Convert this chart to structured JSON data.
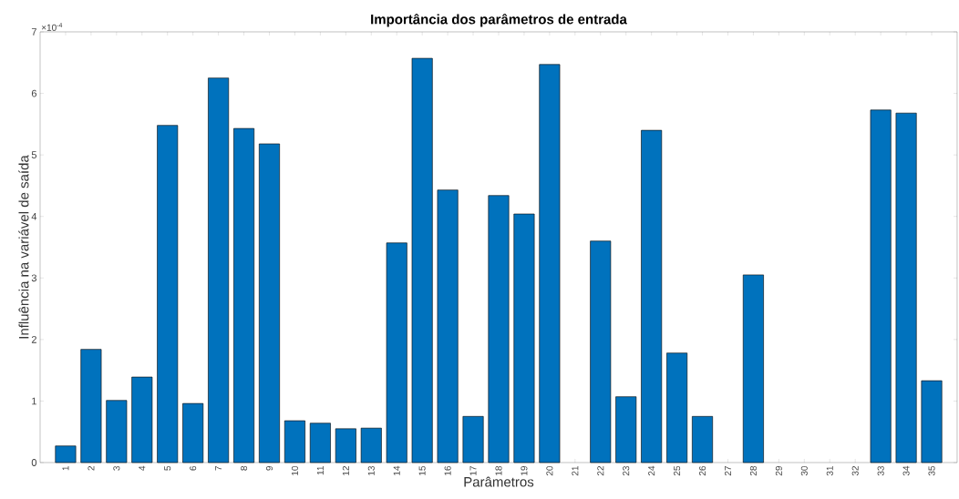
{
  "chart_data": {
    "type": "bar",
    "title": "Importância dos parâmetros de entrada",
    "xlabel": "Parâmetros",
    "ylabel": "Influência na variável de saída",
    "categories": [
      "1",
      "2",
      "3",
      "4",
      "5",
      "6",
      "7",
      "8",
      "9",
      "10",
      "11",
      "12",
      "13",
      "14",
      "15",
      "16",
      "17",
      "18",
      "19",
      "20",
      "21",
      "22",
      "23",
      "24",
      "25",
      "26",
      "27",
      "28",
      "29",
      "30",
      "31",
      "32",
      "33",
      "34",
      "35"
    ],
    "values": [
      0.27,
      1.84,
      1.01,
      1.39,
      5.48,
      0.96,
      6.25,
      5.43,
      5.18,
      0.68,
      0.64,
      0.55,
      0.56,
      3.57,
      6.57,
      4.43,
      0.75,
      4.34,
      4.04,
      6.47,
      null,
      3.6,
      1.07,
      5.4,
      1.78,
      0.75,
      null,
      3.05,
      null,
      null,
      null,
      null,
      5.73,
      5.68,
      1.33
    ],
    "color": "#0072bd",
    "ylim": [
      0,
      7
    ],
    "yticks": [
      0,
      1,
      2,
      3,
      4,
      5,
      6,
      7
    ],
    "annotations": [
      "×10$^{-4}$"
    ]
  }
}
